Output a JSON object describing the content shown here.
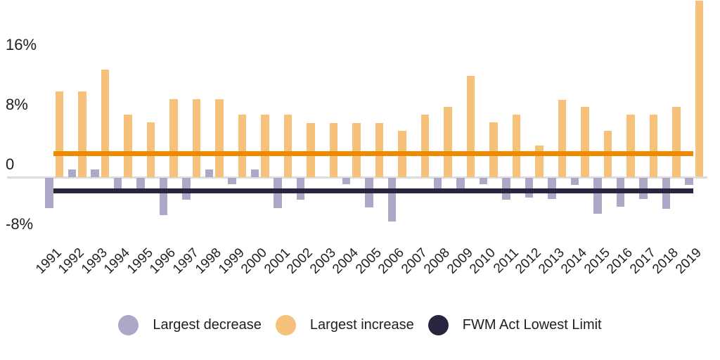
{
  "page": {
    "background": "#ffffff",
    "text_color": "#1f1f1f",
    "axis_line_color": "#dcdcdc"
  },
  "chart_data": {
    "type": "bar",
    "title": "",
    "categories": [
      "1991",
      "1992",
      "1993",
      "1994",
      "1995",
      "1996",
      "1997",
      "1998",
      "1999",
      "2000",
      "2001",
      "2002",
      "2003",
      "2004",
      "2005",
      "2006",
      "2007",
      "2008",
      "2009",
      "2010",
      "2011",
      "2012",
      "2013",
      "2014",
      "2015",
      "2016",
      "2017",
      "2018",
      "2019"
    ],
    "series": [
      {
        "name": "Largest decrease",
        "color": "#aca8c8",
        "values": [
          -4.1,
          1.0,
          1.0,
          -2.0,
          -2.0,
          -5.0,
          -3.0,
          1.0,
          -0.9,
          1.0,
          -4.1,
          -3.0,
          0.0,
          -0.9,
          -4.0,
          -5.9,
          0.0,
          -2.0,
          -2.0,
          -0.9,
          -3.0,
          -2.7,
          -2.9,
          -1.0,
          -4.8,
          -3.9,
          -2.9,
          -4.2,
          -1.0
        ]
      },
      {
        "name": "Largest increase",
        "color": "#f5c17b",
        "values": [
          11.4,
          11.4,
          14.4,
          8.3,
          7.3,
          10.4,
          10.4,
          10.4,
          8.3,
          8.3,
          8.3,
          7.2,
          7.2,
          7.2,
          7.2,
          6.2,
          8.3,
          9.4,
          13.5,
          7.3,
          8.3,
          4.2,
          10.3,
          9.4,
          6.2,
          8.3,
          8.3,
          9.4,
          23.6
        ]
      }
    ],
    "reference_lines": [
      {
        "label": "",
        "value": 3.1,
        "color": "#ee8a00"
      },
      {
        "label": "FWM Act Lowest Limit",
        "value": -1.9,
        "color": "#2a2440"
      }
    ],
    "y_axis": {
      "unit": "%",
      "tick_labels": [
        "16%",
        "8%",
        "0",
        "-8%"
      ],
      "tick_values": [
        16,
        8,
        0,
        -8
      ],
      "range": [
        -8.5,
        23.7
      ],
      "grid": false
    },
    "x_axis": {
      "label_rotation_deg": -45
    },
    "legend": {
      "position": "bottom",
      "items": [
        {
          "label": "Largest decrease",
          "color": "#aca8c8"
        },
        {
          "label": "Largest increase",
          "color": "#f5c17b"
        },
        {
          "label": "FWM Act Lowest Limit",
          "color": "#2a2440"
        }
      ]
    }
  }
}
